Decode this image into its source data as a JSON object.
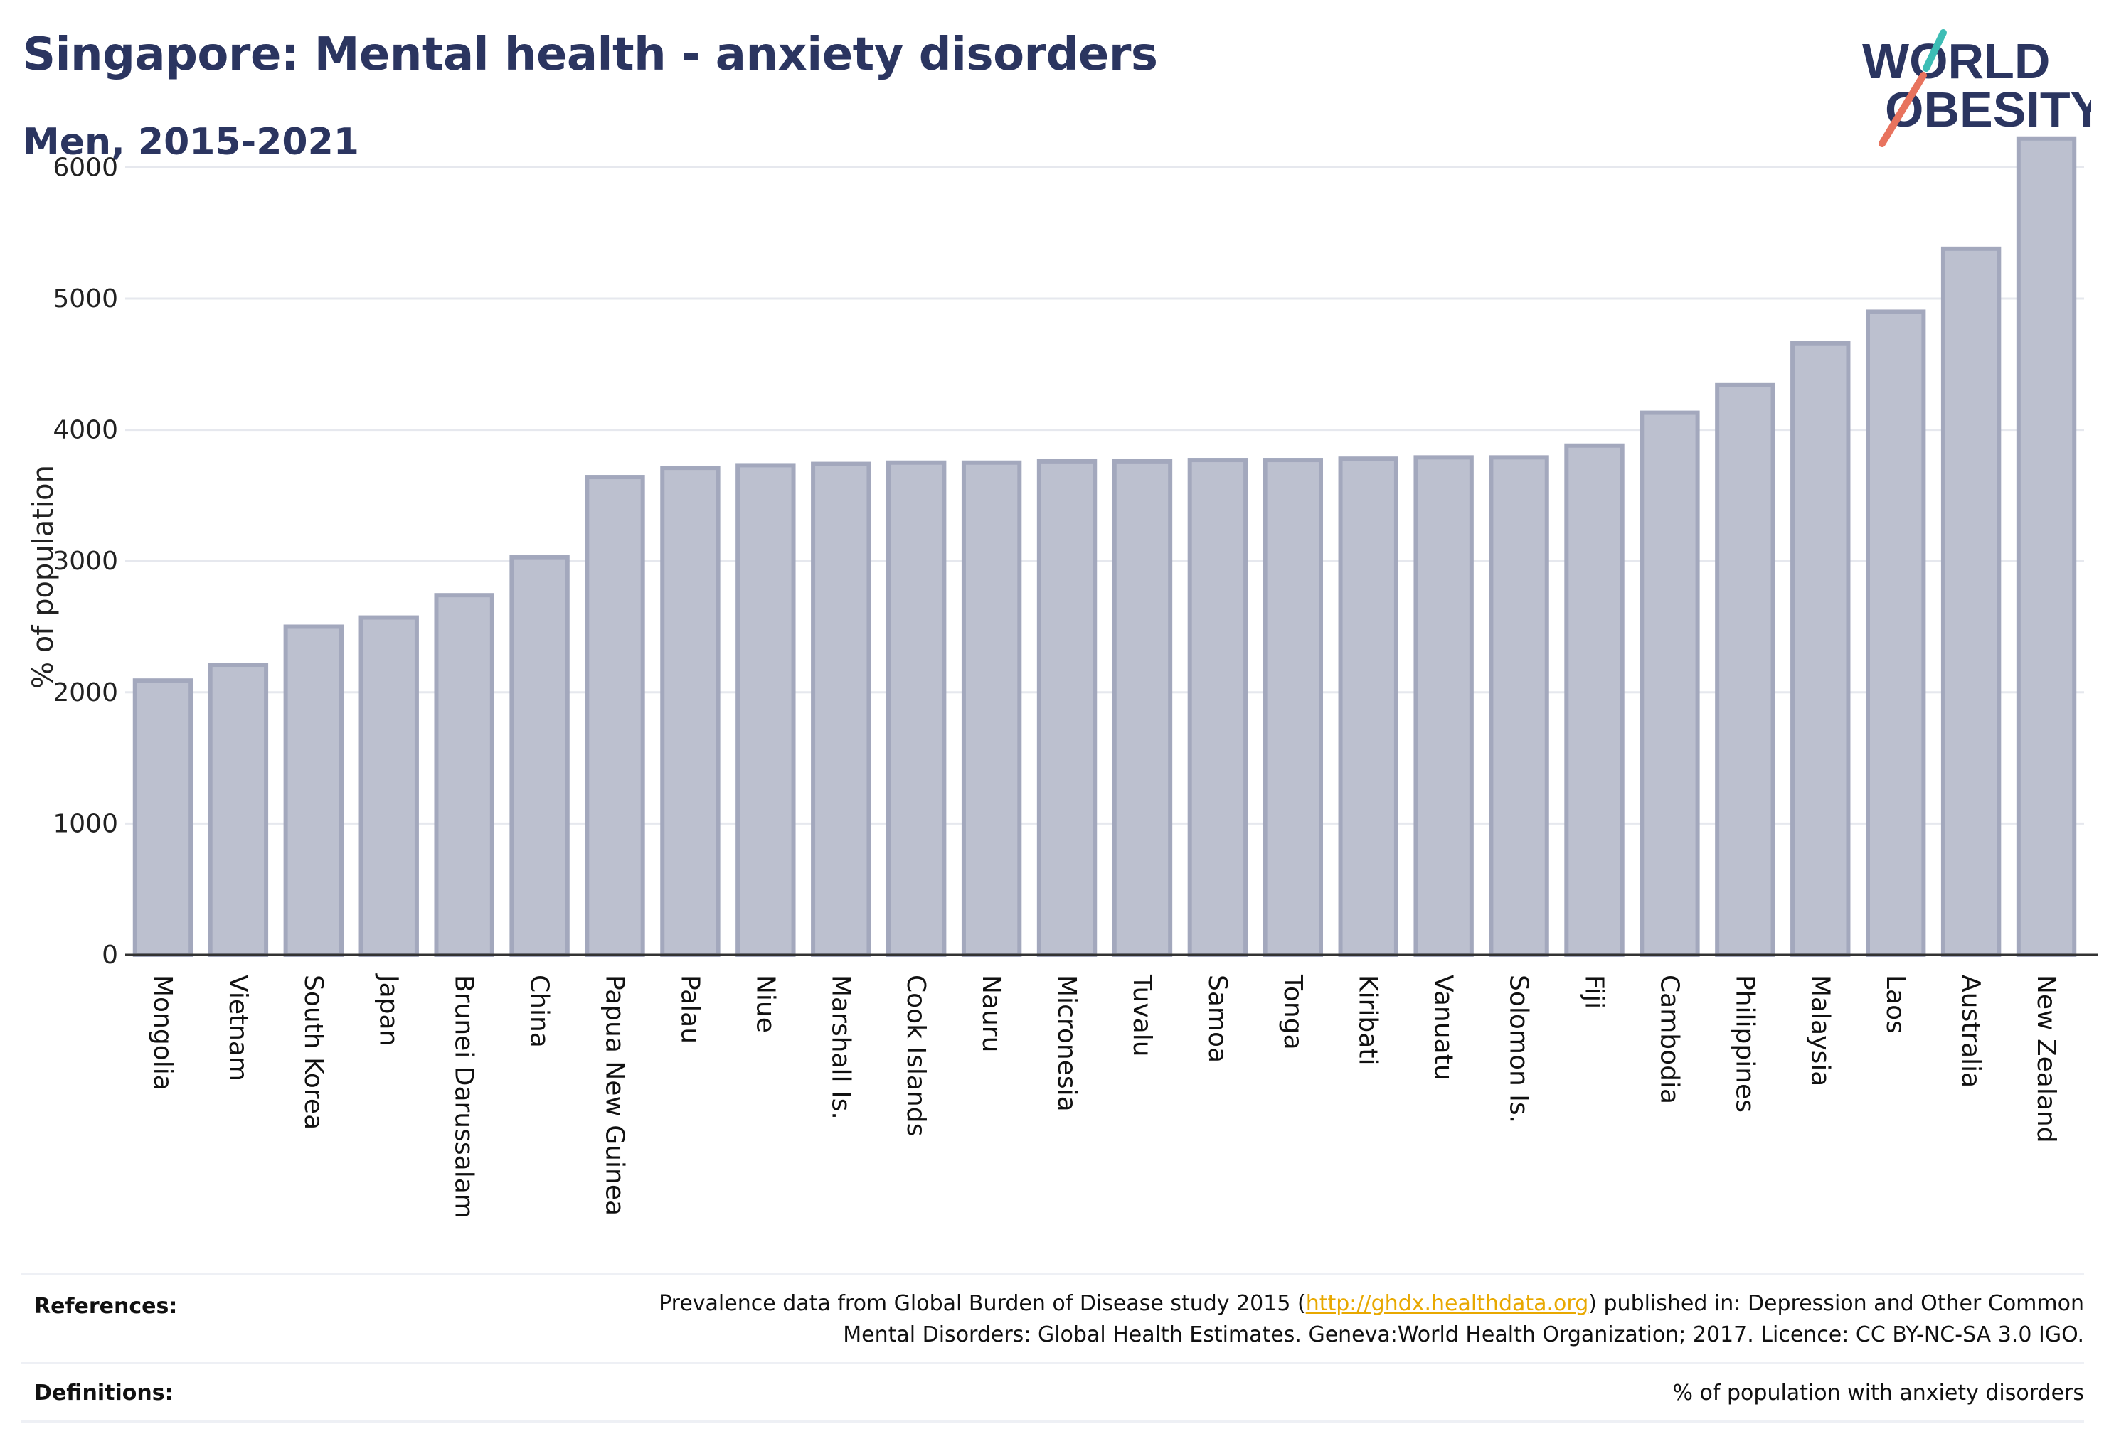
{
  "header": {
    "title": "Singapore: Mental health - anxiety disorders",
    "subtitle": "Men, 2015-2021"
  },
  "logo": {
    "line1": "WORLD",
    "line2": "OBESITY"
  },
  "colors": {
    "bar_fill": "#bcc0cf",
    "bar_stroke": "#a3a8bd",
    "title": "#2b3560",
    "logo_slash_top": "#3dbdb5",
    "logo_slash_bottom": "#e8735e",
    "link": "#e8a800"
  },
  "chart_data": {
    "type": "bar",
    "ylabel": "% of population",
    "xlabel": "",
    "ylim": [
      0,
      6300
    ],
    "yticks": [
      0,
      1000,
      2000,
      3000,
      4000,
      5000,
      6000
    ],
    "grid": true,
    "categories": [
      "Mongolia",
      "Vietnam",
      "South Korea",
      "Japan",
      "Brunei Darussalam",
      "China",
      "Papua New Guinea",
      "Palau",
      "Niue",
      "Marshall Is.",
      "Cook Islands",
      "Nauru",
      "Micronesia",
      "Tuvalu",
      "Samoa",
      "Tonga",
      "Kiribati",
      "Vanuatu",
      "Solomon Is.",
      "Fiji",
      "Cambodia",
      "Philippines",
      "Malaysia",
      "Laos",
      "Australia",
      "New Zealand"
    ],
    "values": [
      2090,
      2210,
      2500,
      2570,
      2740,
      3030,
      3640,
      3710,
      3730,
      3740,
      3750,
      3750,
      3760,
      3760,
      3770,
      3770,
      3780,
      3790,
      3790,
      3880,
      4130,
      4340,
      4660,
      4900,
      5380,
      6220
    ]
  },
  "references": {
    "label": "References:",
    "text_before": "Prevalence data from Global Burden of Disease study 2015 (",
    "link": "http://ghdx.healthdata.org",
    "text_after": ") published in: Depression and Other Common",
    "line2": "Mental Disorders: Global Health Estimates. Geneva:World Health Organization; 2017. Licence: CC BY-NC-SA 3.0 IGO."
  },
  "definitions": {
    "label": "Definitions:",
    "text": "% of population with anxiety disorders"
  }
}
